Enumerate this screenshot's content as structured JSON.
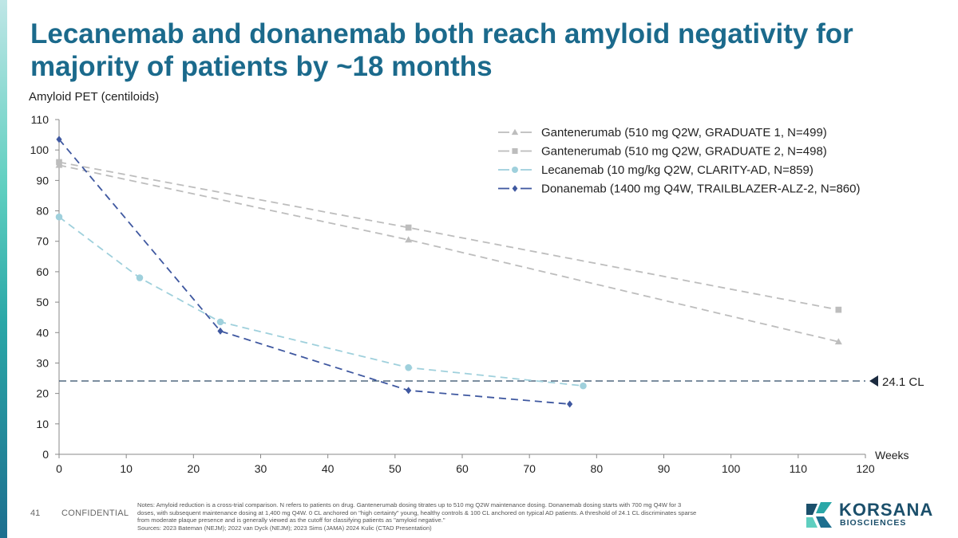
{
  "title_lines": [
    "Lecanemab and donanemab both reach amyloid negativity for",
    "majority of patients by ~18 months"
  ],
  "footer": {
    "page_number": "41",
    "confidential": "CONFIDENTIAL",
    "notes": [
      "Notes: Amyloid reduction is a cross-trial comparison. N refers to patients on drug. Gantenerumab dosing titrates up to 510 mg Q2W maintenance dosing. Donanemab dosing starts with 700 mg Q4W for 3",
      "doses, with subsequent maintenance dosing at 1,400 mg Q4W. 0 CL anchored on \"high certainty\" young, healthy controls & 100 CL anchored on typical AD patients. A threshold of 24.1 CL discriminates sparse",
      "from moderate plaque presence and is generally viewed as the cutoff for classifying patients as \"amyloid negative.\"",
      "Sources: 2023 Bateman (NEJM); 2022 van Dyck (NEJM); 2023 Sims (JAMA) 2024 Kulic (CTAD Presentation)"
    ]
  },
  "logo": {
    "word1": "KORSANA",
    "word2": "BIOSCIENCES"
  },
  "chart_data": {
    "type": "line",
    "ylabel": "Amyloid PET (centiloids)",
    "xlabel": "Weeks",
    "xlim": [
      0,
      120
    ],
    "ylim": [
      0,
      110
    ],
    "xticks": [
      0,
      10,
      20,
      30,
      40,
      50,
      60,
      70,
      80,
      90,
      100,
      110,
      120
    ],
    "yticks": [
      0,
      10,
      20,
      30,
      40,
      50,
      60,
      70,
      80,
      90,
      100,
      110
    ],
    "threshold": {
      "value": 24.1,
      "label": "24.1 CL"
    },
    "legend_position": "top-right",
    "series": [
      {
        "name": "Gantenerumab (510 mg Q2W, GRADUATE 1, N=499)",
        "marker": "triangle",
        "color": "#bdbdbd",
        "x": [
          0,
          52,
          116
        ],
        "y": [
          95,
          70.5,
          37
        ]
      },
      {
        "name": "Gantenerumab (510 mg Q2W, GRADUATE 2, N=498)",
        "marker": "square",
        "color": "#bdbdbd",
        "x": [
          0,
          52,
          116
        ],
        "y": [
          96,
          74.5,
          47.5
        ]
      },
      {
        "name": "Lecanemab (10 mg/kg Q2W, CLARITY-AD, N=859)",
        "marker": "circle",
        "color": "#9fd0dc",
        "x": [
          0,
          12,
          24,
          52,
          78
        ],
        "y": [
          78,
          58,
          43.5,
          28.5,
          22.5
        ]
      },
      {
        "name": "Donanemab (1400 mg Q4W, TRAILBLAZER-ALZ-2, N=860)",
        "marker": "diamond",
        "color": "#3f58a0",
        "x": [
          0,
          24,
          52,
          76
        ],
        "y": [
          103.5,
          40.5,
          21,
          16.5
        ]
      }
    ]
  },
  "colors": {
    "title": "#1b6a8c",
    "threshold_line": "#2e4a66",
    "axis": "#888888"
  }
}
